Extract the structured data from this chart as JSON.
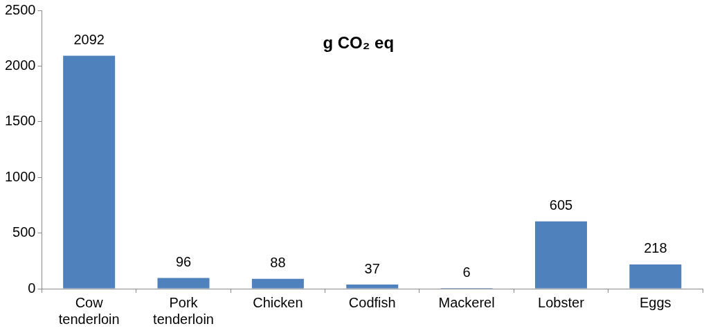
{
  "chart_data": {
    "type": "bar",
    "title": "g CO₂ eq",
    "categories": [
      "Cow tenderloin",
      "Pork tenderloin",
      "Chicken",
      "Codfish",
      "Mackerel",
      "Lobster",
      "Eggs"
    ],
    "values": [
      2092,
      96,
      88,
      37,
      6,
      605,
      218
    ],
    "color": "#4f81bd",
    "ylim": [
      0,
      2500
    ],
    "yticks": [
      0,
      500,
      1000,
      1500,
      2000,
      2500
    ],
    "grid": false,
    "data_labels": true
  }
}
